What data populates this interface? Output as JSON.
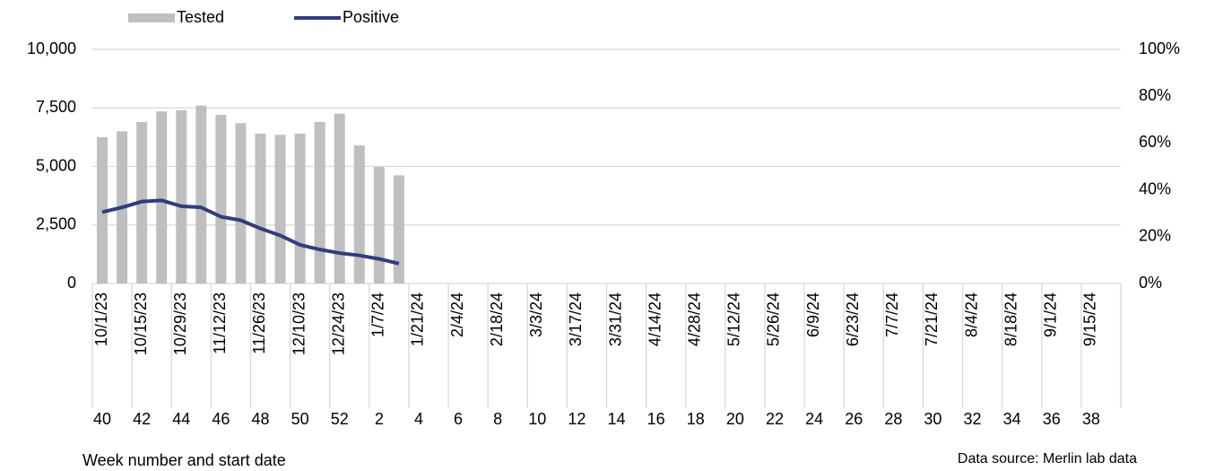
{
  "chart_data": {
    "type": "combo",
    "x_label": "Week number and start date",
    "source": "Data source: Merlin lab data",
    "categories": [
      "10/1/23",
      null,
      "10/15/23",
      null,
      "10/29/23",
      null,
      "11/12/23",
      null,
      "11/26/23",
      null,
      "12/10/23",
      null,
      "12/24/23",
      null,
      "1/7/24",
      null,
      "1/21/24",
      null,
      "2/4/24",
      null,
      "2/18/24",
      null,
      "3/3/24",
      null,
      "3/17/24",
      null,
      "3/31/24",
      null,
      "4/14/24",
      null,
      "4/28/24",
      null,
      "5/12/24",
      null,
      "5/26/24",
      null,
      "6/9/24",
      null,
      "6/23/24",
      null,
      "7/7/24",
      null,
      "7/21/24",
      null,
      "8/4/24",
      null,
      "8/18/24",
      null,
      "9/1/24",
      null,
      "9/15/24",
      null
    ],
    "week_numbers": [
      40,
      null,
      42,
      null,
      44,
      null,
      46,
      null,
      48,
      null,
      50,
      null,
      52,
      null,
      2,
      null,
      4,
      null,
      6,
      null,
      8,
      null,
      10,
      null,
      12,
      null,
      14,
      null,
      16,
      null,
      18,
      null,
      20,
      null,
      22,
      null,
      24,
      null,
      26,
      null,
      28,
      null,
      30,
      null,
      32,
      null,
      34,
      null,
      36,
      null,
      38,
      null
    ],
    "series": [
      {
        "name": "Tested",
        "type": "bar",
        "color": "#bfbfbf",
        "values": [
          6250,
          6500,
          6900,
          7350,
          7400,
          7600,
          7200,
          6850,
          6400,
          6350,
          6400,
          6900,
          7250,
          5900,
          4980,
          4620,
          null,
          null,
          null,
          null,
          null,
          null,
          null,
          null,
          null,
          null,
          null,
          null,
          null,
          null,
          null,
          null,
          null,
          null,
          null,
          null,
          null,
          null,
          null,
          null,
          null,
          null,
          null,
          null,
          null,
          null,
          null,
          null,
          null,
          null,
          null,
          null
        ]
      },
      {
        "name": "Positive",
        "type": "line",
        "axis": "y2",
        "color": "#313d7c",
        "values": [
          30.5,
          32.5,
          35,
          35.5,
          33,
          32.5,
          28.5,
          27,
          23.5,
          20.5,
          16.5,
          14.5,
          13,
          12,
          10.5,
          8.5,
          null,
          null,
          null,
          null,
          null,
          null,
          null,
          null,
          null,
          null,
          null,
          null,
          null,
          null,
          null,
          null,
          null,
          null,
          null,
          null,
          null,
          null,
          null,
          null,
          null,
          null,
          null,
          null,
          null,
          null,
          null,
          null,
          null,
          null,
          null,
          null
        ]
      }
    ],
    "ylim": [
      0,
      10000
    ],
    "yticks": [
      0,
      {
        "value": 2500,
        "label": "2,500"
      },
      {
        "value": 5000,
        "label": "5,000"
      },
      {
        "value": 7500,
        "label": "7,500"
      },
      {
        "value": 10000,
        "label": "10,000"
      }
    ],
    "y2lim": [
      0,
      100
    ],
    "y2ticks": [
      {
        "value": 0,
        "label": "0%"
      },
      {
        "value": 20,
        "label": "20%"
      },
      {
        "value": 40,
        "label": "40%"
      },
      {
        "value": 60,
        "label": "60%"
      },
      {
        "value": 80,
        "label": "80%"
      },
      {
        "value": 100,
        "label": "100%"
      }
    ],
    "grid": true
  }
}
